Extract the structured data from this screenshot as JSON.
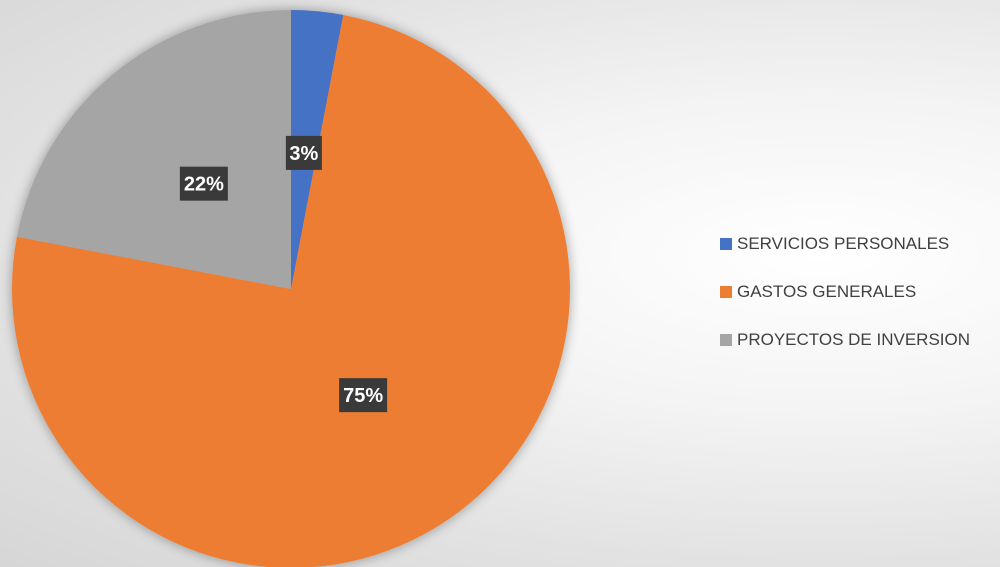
{
  "chart_data": {
    "type": "pie",
    "title": "",
    "categories": [
      "SERVICIOS PERSONALES",
      "GASTOS GENERALES",
      "PROYECTOS DE INVERSION"
    ],
    "values": [
      3,
      75,
      22
    ],
    "labels": [
      "3%",
      "75%",
      "22%"
    ],
    "colors": [
      "#4472C4",
      "#ED7D31",
      "#A5A5A5"
    ],
    "legend_position": "right",
    "start_angle": "top"
  }
}
